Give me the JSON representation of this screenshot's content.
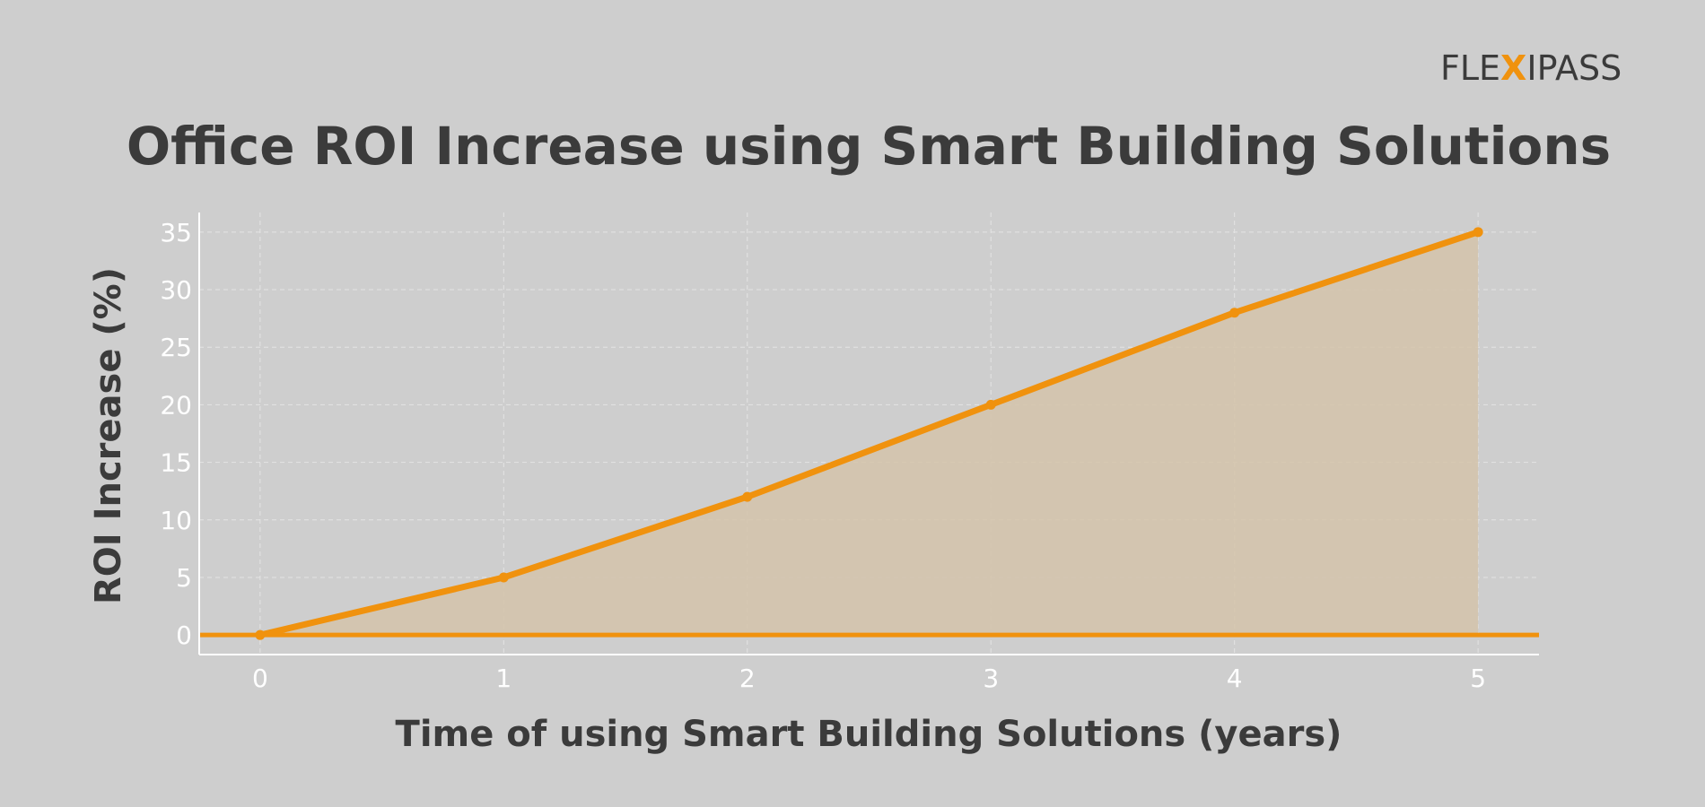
{
  "logo": {
    "part1": "FLE",
    "part2": "X",
    "part3": "IPASS"
  },
  "colors": {
    "background": "#cecece",
    "line": "#f0920e",
    "fill": "#d4c4ad",
    "text": "#3b3b3b",
    "axis": "#ffffff"
  },
  "chart_data": {
    "type": "area",
    "title": "Office ROI Increase using Smart Building Solutions",
    "xlabel": "Time of using Smart Building Solutions (years)",
    "ylabel": "ROI Increase (%)",
    "x": [
      0,
      1,
      2,
      3,
      4,
      5
    ],
    "series": [
      {
        "name": "ROI Increase",
        "values": [
          0,
          5,
          12,
          20,
          28,
          35
        ]
      }
    ],
    "xticks": [
      "0",
      "1",
      "2",
      "3",
      "4",
      "5"
    ],
    "yticks": [
      "0",
      "5",
      "10",
      "15",
      "20",
      "25",
      "30",
      "35"
    ],
    "xlim": [
      -0.25,
      5.25
    ],
    "ylim": [
      -1.7,
      36.7
    ],
    "baseline": 0,
    "grid": true
  }
}
